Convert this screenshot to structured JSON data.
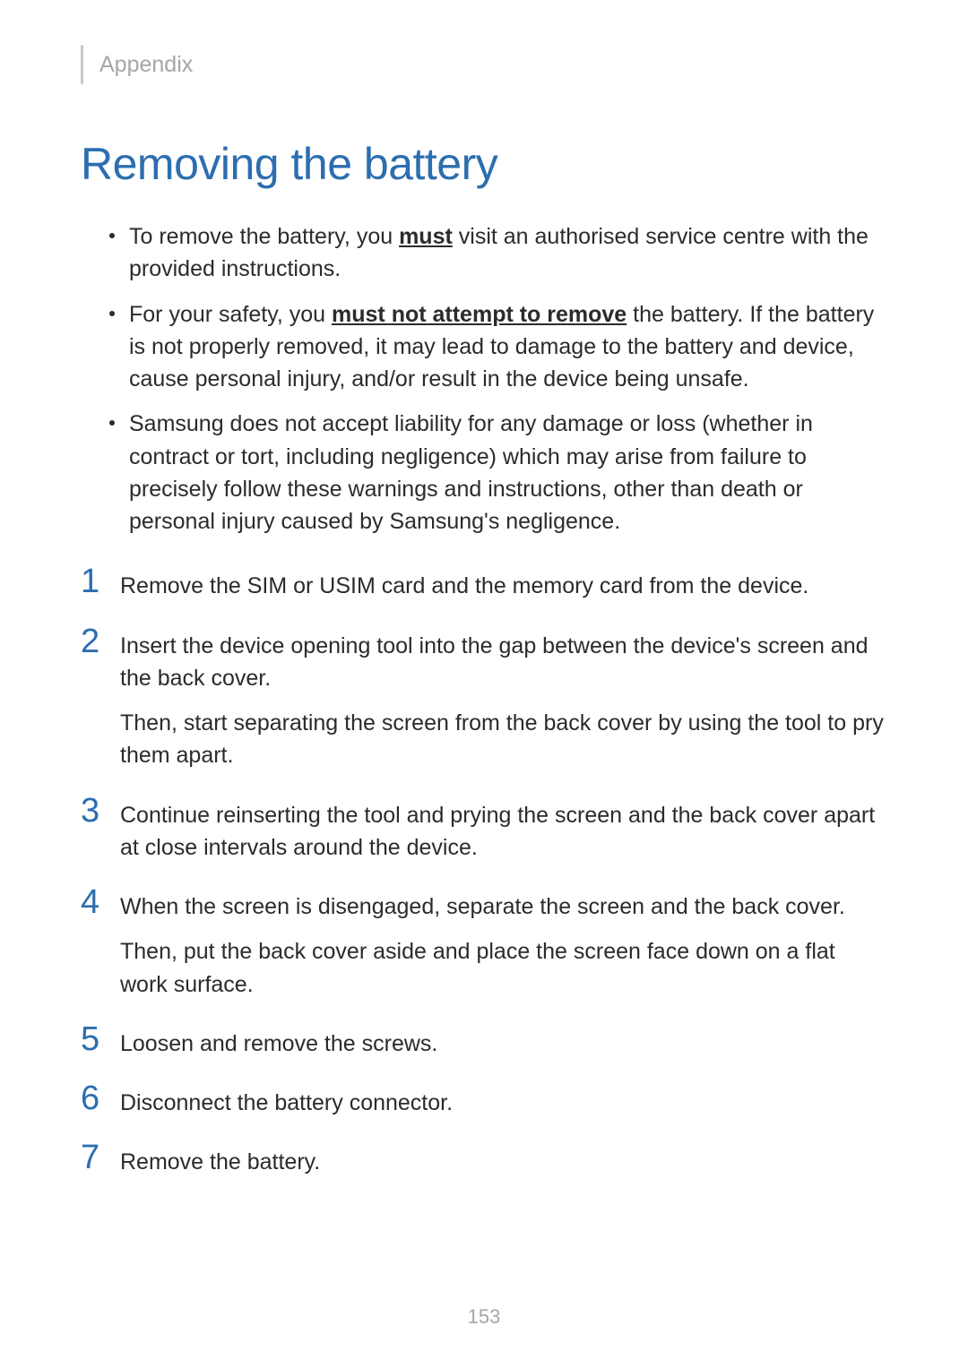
{
  "header": {
    "section": "Appendix"
  },
  "title": "Removing the battery",
  "bullets": [
    {
      "pre": "To remove the battery, you ",
      "emph": "must",
      "post": " visit an authorised service centre with the provided instructions."
    },
    {
      "pre": "For your safety, you ",
      "emph": "must not attempt to remove",
      "post": " the battery. If the battery is not properly removed, it may lead to damage to the battery and device, cause personal injury, and/or result in the device being unsafe."
    },
    {
      "pre": "Samsung does not accept liability for any damage or loss (whether in contract or tort, including negligence) which may arise from failure to precisely follow these warnings and instructions, other than death or personal injury caused by Samsung's negligence.",
      "emph": "",
      "post": ""
    }
  ],
  "steps": [
    {
      "n": "1",
      "paras": [
        "Remove the SIM or USIM card and the memory card from the device."
      ]
    },
    {
      "n": "2",
      "paras": [
        "Insert the device opening tool into the gap between the device's screen and the back cover.",
        "Then, start separating the screen from the back cover by using the tool to pry them apart."
      ]
    },
    {
      "n": "3",
      "paras": [
        "Continue reinserting the tool and prying the screen and the back cover apart at close intervals around the device."
      ]
    },
    {
      "n": "4",
      "paras": [
        "When the screen is disengaged, separate the screen and the back cover.",
        "Then, put the back cover aside and place the screen face down on a flat work surface."
      ]
    },
    {
      "n": "5",
      "paras": [
        "Loosen and remove the screws."
      ]
    },
    {
      "n": "6",
      "paras": [
        "Disconnect the battery connector."
      ]
    },
    {
      "n": "7",
      "paras": [
        "Remove the battery."
      ]
    }
  ],
  "pageNumber": "153",
  "colors": {
    "accent": "#2c6eaf",
    "muted": "#a6a6a6",
    "text": "#2b2b2b",
    "bg": "#ffffff"
  },
  "typography": {
    "title_fontsize": 50,
    "body_fontsize": 25,
    "stepnum_fontsize": 38,
    "header_fontsize": 25,
    "pagenum_fontsize": 22
  }
}
